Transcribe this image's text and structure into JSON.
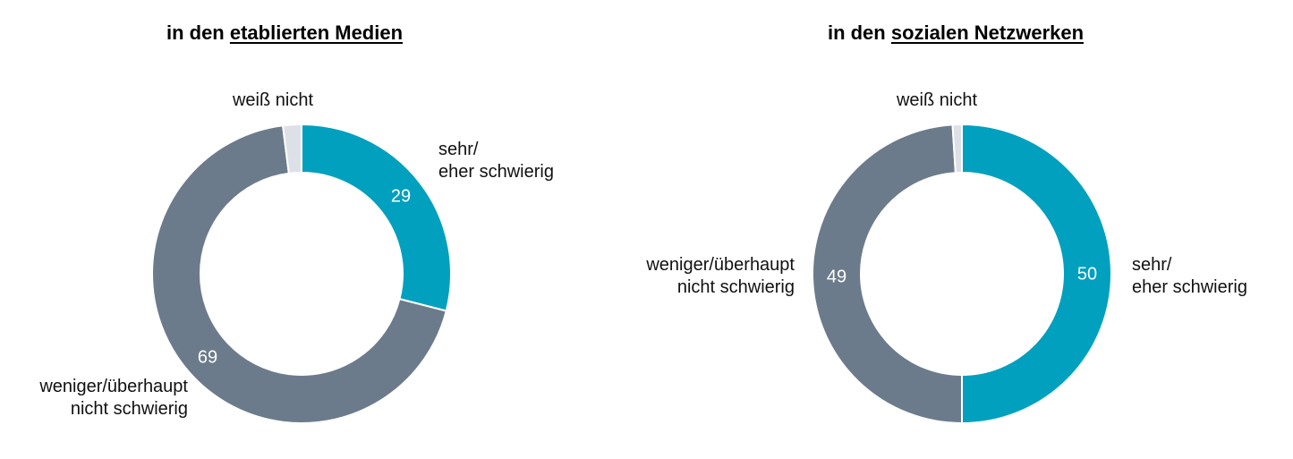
{
  "chart_data": [
    {
      "type": "donut",
      "title_parts": [
        "in den",
        "etablierten Medien"
      ],
      "categories": [
        "sehr/\neher schwierig",
        "weniger/überhaupt\nnicht schwierig",
        "weiß nicht"
      ],
      "values": [
        29,
        69,
        2
      ],
      "colors": [
        "#00a0be",
        "#6c7b8b",
        "#dde0e6"
      ]
    },
    {
      "type": "donut",
      "title_parts": [
        "in den",
        "sozialen Netzwerken"
      ],
      "categories": [
        "sehr/\neher schwierig",
        "weniger/überhaupt\nnicht schwierig",
        "weiß nicht"
      ],
      "values": [
        50,
        49,
        1
      ],
      "colors": [
        "#00a0be",
        "#6c7b8b",
        "#dde0e6"
      ]
    }
  ]
}
